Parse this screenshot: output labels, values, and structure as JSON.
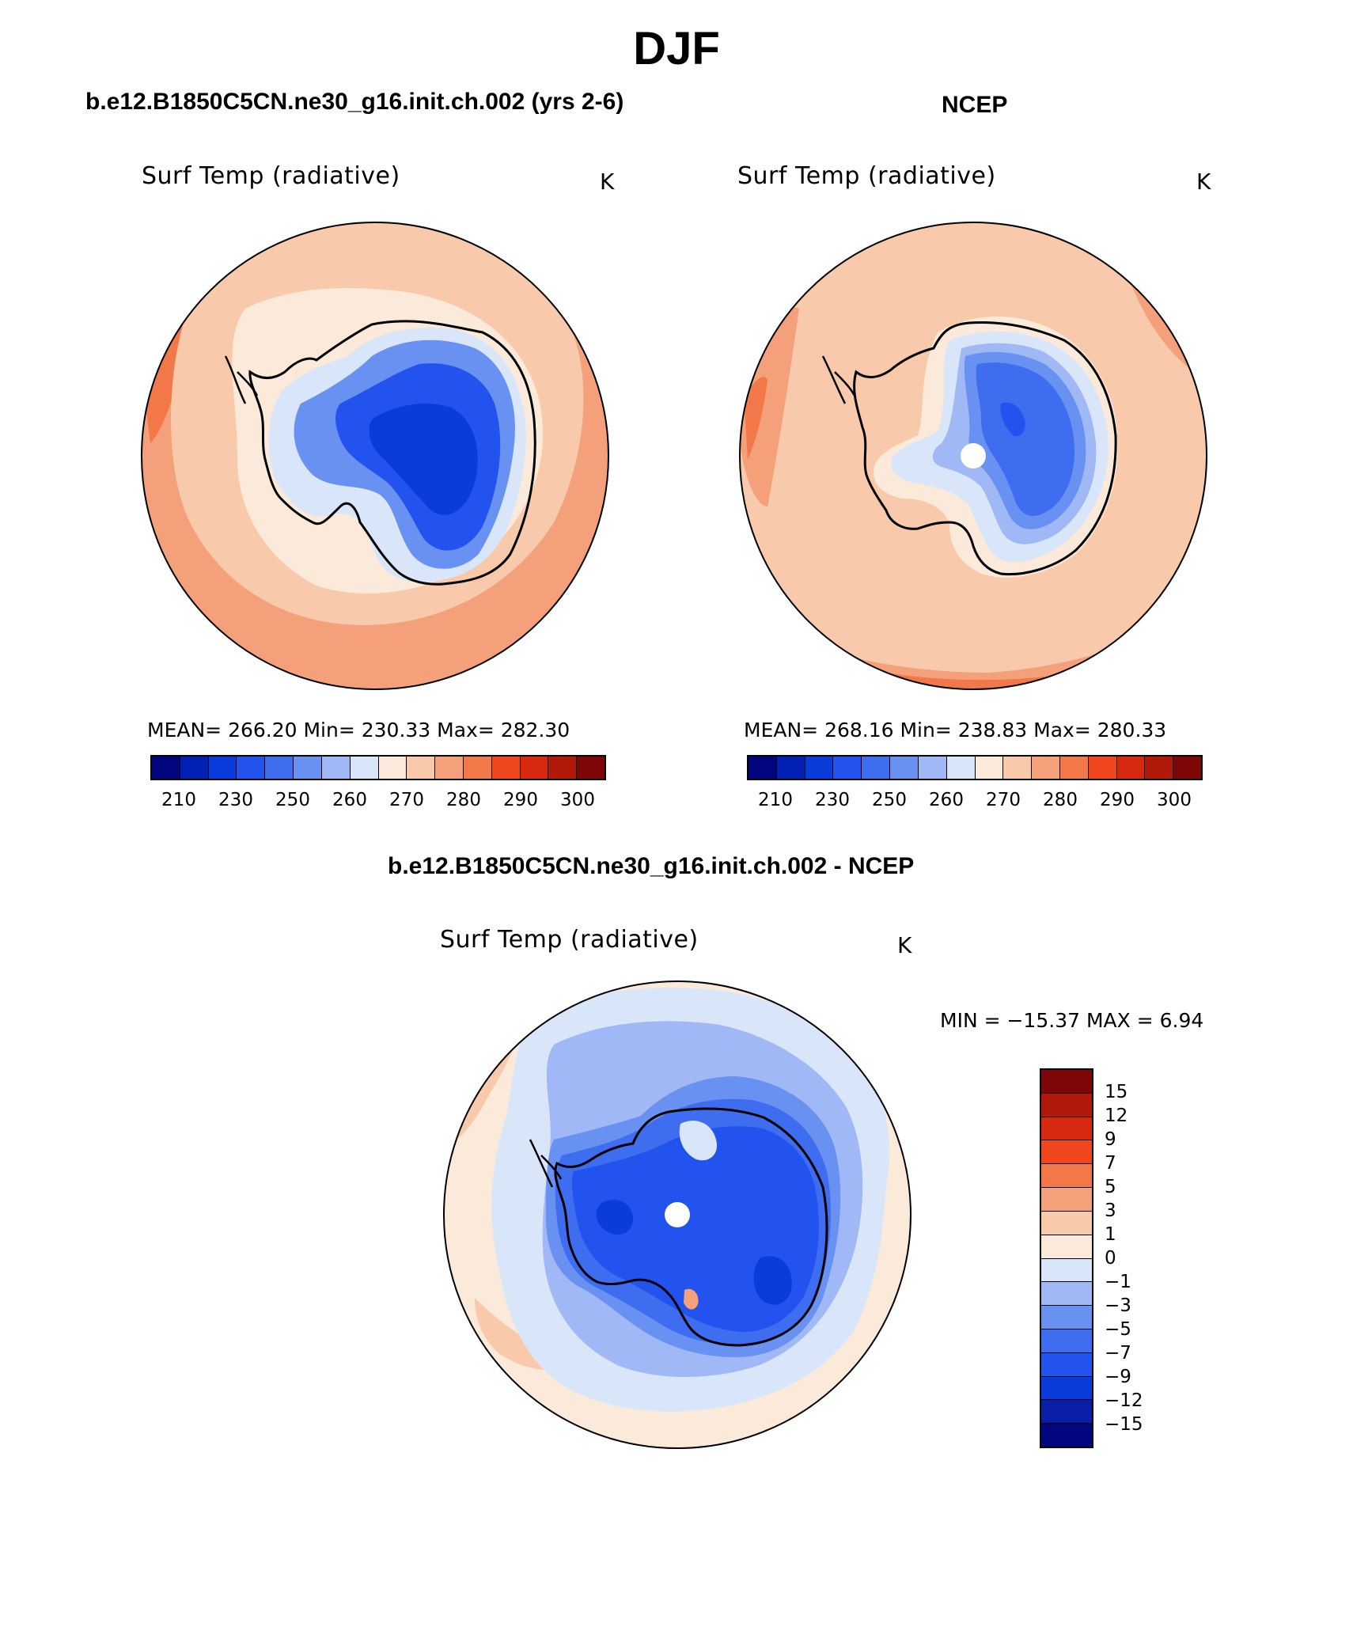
{
  "page": {
    "title": "DJF",
    "subtitle_model": "b.e12.B1850C5CN.ne30_g16.init.ch.002 (yrs 2-6)",
    "subtitle_obs": "NCEP",
    "subtitle_diff": "b.e12.B1850C5CN.ne30_g16.init.ch.002 - NCEP"
  },
  "panels": {
    "model": {
      "variable": "Surf Temp (radiative)",
      "unit": "K",
      "stats": "MEAN= 266.20   Min= 230.33   Max= 282.30"
    },
    "obs": {
      "variable": "Surf Temp (radiative)",
      "unit": "K",
      "stats": "MEAN= 268.16   Min= 238.83   Max= 280.33"
    },
    "diff": {
      "variable": "Surf Temp (radiative)",
      "unit": "K",
      "stats": "MIN = −15.37 MAX =    6.94"
    }
  },
  "colorbars": {
    "abs_colors": [
      "#03057e",
      "#0320b5",
      "#0a3cdb",
      "#2253ee",
      "#3e6df0",
      "#6891f2",
      "#a0b8f6",
      "#d9e6fa",
      "#fbe9da",
      "#f8c9ab",
      "#f4a07a",
      "#f27749",
      "#f0461e",
      "#d92810",
      "#b1190b",
      "#7e0606"
    ],
    "abs_ticks": [
      "210",
      "230",
      "250",
      "260",
      "270",
      "280",
      "290",
      "300"
    ],
    "diff_colors": [
      "#03057e",
      "#0a1fa8",
      "#0a3cdb",
      "#2253ee",
      "#3e6df0",
      "#6891f2",
      "#a0b8f6",
      "#d9e6fa",
      "#fbe9da",
      "#f8c9ab",
      "#f4a07a",
      "#f27749",
      "#f0461e",
      "#d92810",
      "#b1190b",
      "#7e0606"
    ],
    "diff_ticks": [
      "15",
      "12",
      "9",
      "7",
      "5",
      "3",
      "1",
      "0",
      "−1",
      "−3",
      "−5",
      "−7",
      "−9",
      "−12",
      "−15"
    ]
  },
  "chart_data": [
    {
      "type": "heatmap",
      "title": "Surf Temp (radiative)",
      "unit": "K",
      "projection": "south polar stereographic",
      "levels": [
        210,
        220,
        230,
        240,
        250,
        255,
        260,
        265,
        270,
        275,
        280,
        285,
        290,
        295,
        300
      ],
      "mean": 266.2,
      "min": 230.33,
      "max": 282.3
    },
    {
      "type": "heatmap",
      "title": "Surf Temp (radiative)",
      "unit": "K",
      "projection": "south polar stereographic",
      "levels": [
        210,
        220,
        230,
        240,
        250,
        255,
        260,
        265,
        270,
        275,
        280,
        285,
        290,
        295,
        300
      ],
      "mean": 268.16,
      "min": 238.83,
      "max": 280.33
    },
    {
      "type": "heatmap",
      "title": "Surf Temp (radiative)",
      "unit": "K",
      "projection": "south polar stereographic",
      "levels": [
        -15,
        -12,
        -9,
        -7,
        -5,
        -3,
        -1,
        0,
        1,
        3,
        5,
        7,
        9,
        12,
        15
      ],
      "min": -15.37,
      "max": 6.94
    }
  ]
}
